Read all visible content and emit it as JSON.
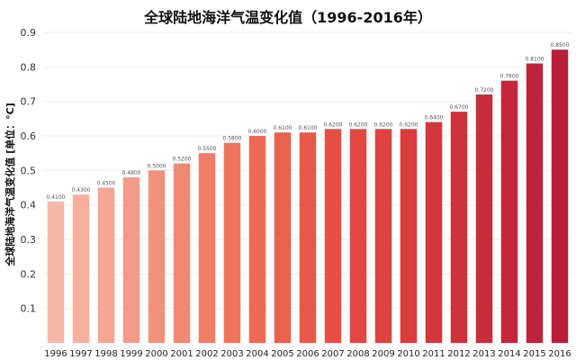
{
  "chart_data": {
    "type": "bar",
    "title": "全球陆地海洋气温变化值（1996-2016年）",
    "xlabel": "",
    "ylabel": "全球陆地海洋气温变化值 [单位：°C]",
    "ylim": [
      0,
      0.9
    ],
    "yticks": [
      "0.9",
      "0.8",
      "0.7",
      "0.6",
      "0.5",
      "0.4",
      "0.3",
      "0.2",
      "0.1"
    ],
    "grid": true,
    "categories": [
      "1996",
      "1997",
      "1998",
      "1999",
      "2000",
      "2001",
      "2002",
      "2003",
      "2004",
      "2005",
      "2006",
      "2007",
      "2008",
      "2009",
      "2010",
      "2011",
      "2012",
      "2013",
      "2014",
      "2015",
      "2016"
    ],
    "values": [
      0.41,
      0.43,
      0.45,
      0.48,
      0.5,
      0.52,
      0.55,
      0.58,
      0.6,
      0.61,
      0.61,
      0.62,
      0.62,
      0.62,
      0.62,
      0.64,
      0.67,
      0.72,
      0.76,
      0.81,
      0.85
    ],
    "value_labels": [
      "0.4100",
      "0.4300",
      "0.4500",
      "0.4800",
      "0.5000",
      "0.5200",
      "0.5500",
      "0.5800",
      "0.6000",
      "0.6100",
      "0.6100",
      "0.6200",
      "0.6200",
      "0.6200",
      "0.6200",
      "0.6400",
      "0.6700",
      "0.7200",
      "0.7600",
      "0.8100",
      "0.8500"
    ],
    "colors": [
      "#f7b7a8",
      "#f6ae9e",
      "#f5a593",
      "#f49b87",
      "#f3927c",
      "#f28872",
      "#f07e67",
      "#ee745d",
      "#ec6a55",
      "#ea614e",
      "#e85848",
      "#e55044",
      "#e24841",
      "#de423e",
      "#da3c3c",
      "#d5363b",
      "#d0313b",
      "#ca2c3a",
      "#c4273a",
      "#be2339",
      "#b81e38"
    ]
  }
}
